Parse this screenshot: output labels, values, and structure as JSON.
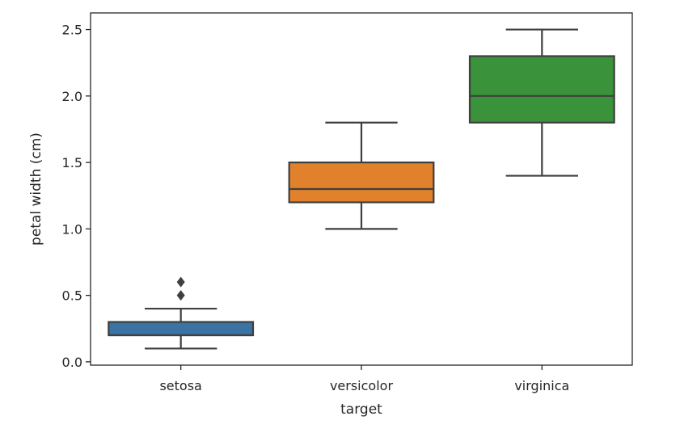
{
  "chart_data": {
    "type": "box",
    "title": "",
    "xlabel": "target",
    "ylabel": "petal width (cm)",
    "ylim": [
      -0.025,
      2.625
    ],
    "yticks": [
      0.0,
      0.5,
      1.0,
      1.5,
      2.0,
      2.5
    ],
    "ytick_labels": [
      "0.0",
      "0.5",
      "1.0",
      "1.5",
      "2.0",
      "2.5"
    ],
    "grid": false,
    "categories": [
      "setosa",
      "versicolor",
      "virginica"
    ],
    "boxes": [
      {
        "name": "setosa",
        "whisker_low": 0.1,
        "q1": 0.2,
        "median": 0.2,
        "q3": 0.3,
        "whisker_high": 0.4,
        "outliers": [
          0.5,
          0.6
        ],
        "color": "#3a73a4"
      },
      {
        "name": "versicolor",
        "whisker_low": 1.0,
        "q1": 1.2,
        "median": 1.3,
        "q3": 1.5,
        "whisker_high": 1.8,
        "outliers": [],
        "color": "#e1812c"
      },
      {
        "name": "virginica",
        "whisker_low": 1.4,
        "q1": 1.8,
        "median": 2.0,
        "q3": 2.3,
        "whisker_high": 2.5,
        "outliers": [],
        "color": "#3a923a"
      }
    ],
    "line_color": "#3f3f3f"
  }
}
